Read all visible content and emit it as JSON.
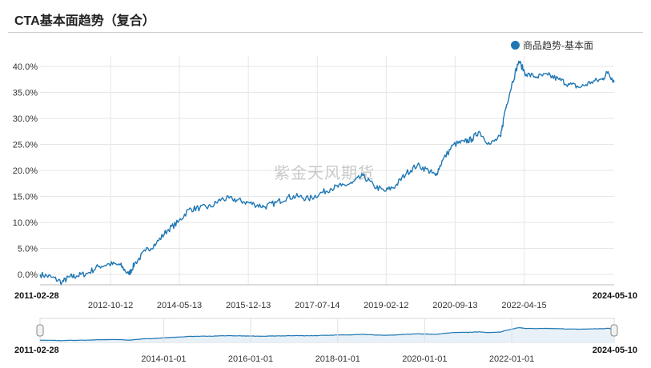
{
  "title": "CTA基本面趋势（复合）",
  "legend": {
    "label": "商品趋势-基本面",
    "color": "#1f77b4"
  },
  "watermark": "紫金天风期货",
  "chart_data": {
    "type": "line",
    "title": "CTA基本面趋势（复合）",
    "ylim": [
      -0.02,
      0.42
    ],
    "y_ticks": [
      "40.0%",
      "35.0%",
      "30.0%",
      "25.0%",
      "20.0%",
      "15.0%",
      "10.0%",
      "5.0%",
      "0.0%"
    ],
    "x_ticks_upper": [
      "2012-10-12",
      "2014-05-13",
      "2015-12-13",
      "2017-07-14",
      "2019-02-12",
      "2020-09-13",
      "2022-04-15"
    ],
    "x_range_labels": [
      "2011-02-28",
      "2024-05-10"
    ],
    "x_ticks_navigator": [
      "2014-01-01",
      "2016-01-01",
      "2018-01-01",
      "2020-01-01",
      "2022-01-01"
    ],
    "series": [
      {
        "name": "商品趋势-基本面",
        "points": [
          [
            "2011-02-28",
            0.0
          ],
          [
            "2011-06-01",
            -0.005
          ],
          [
            "2011-09-01",
            -0.015
          ],
          [
            "2011-11-01",
            -0.005
          ],
          [
            "2012-01-01",
            -0.003
          ],
          [
            "2012-04-01",
            0.002
          ],
          [
            "2012-07-01",
            0.015
          ],
          [
            "2012-10-01",
            0.02
          ],
          [
            "2013-01-01",
            0.018
          ],
          [
            "2013-03-15",
            0.0
          ],
          [
            "2013-05-01",
            0.02
          ],
          [
            "2013-08-01",
            0.045
          ],
          [
            "2013-11-01",
            0.06
          ],
          [
            "2014-02-01",
            0.085
          ],
          [
            "2014-05-01",
            0.1
          ],
          [
            "2014-08-01",
            0.125
          ],
          [
            "2014-11-01",
            0.128
          ],
          [
            "2015-02-01",
            0.13
          ],
          [
            "2015-05-01",
            0.145
          ],
          [
            "2015-08-01",
            0.145
          ],
          [
            "2015-11-01",
            0.14
          ],
          [
            "2016-02-01",
            0.135
          ],
          [
            "2016-05-01",
            0.13
          ],
          [
            "2016-08-01",
            0.138
          ],
          [
            "2016-11-01",
            0.148
          ],
          [
            "2017-02-01",
            0.15
          ],
          [
            "2017-05-01",
            0.145
          ],
          [
            "2017-08-01",
            0.155
          ],
          [
            "2017-11-01",
            0.165
          ],
          [
            "2018-02-01",
            0.17
          ],
          [
            "2018-05-01",
            0.175
          ],
          [
            "2018-08-01",
            0.19
          ],
          [
            "2018-11-01",
            0.17
          ],
          [
            "2019-02-01",
            0.16
          ],
          [
            "2019-05-01",
            0.17
          ],
          [
            "2019-08-01",
            0.195
          ],
          [
            "2019-11-01",
            0.21
          ],
          [
            "2020-02-01",
            0.2
          ],
          [
            "2020-04-01",
            0.19
          ],
          [
            "2020-06-01",
            0.22
          ],
          [
            "2020-09-01",
            0.25
          ],
          [
            "2020-12-01",
            0.255
          ],
          [
            "2021-02-01",
            0.26
          ],
          [
            "2021-04-01",
            0.275
          ],
          [
            "2021-07-01",
            0.25
          ],
          [
            "2021-10-01",
            0.265
          ],
          [
            "2021-11-01",
            0.31
          ],
          [
            "2022-01-01",
            0.365
          ],
          [
            "2022-03-01",
            0.41
          ],
          [
            "2022-05-01",
            0.385
          ],
          [
            "2022-08-01",
            0.38
          ],
          [
            "2022-11-01",
            0.383
          ],
          [
            "2023-02-01",
            0.375
          ],
          [
            "2023-05-01",
            0.365
          ],
          [
            "2023-08-01",
            0.36
          ],
          [
            "2023-11-01",
            0.37
          ],
          [
            "2024-02-01",
            0.375
          ],
          [
            "2024-03-20",
            0.39
          ],
          [
            "2024-05-10",
            0.37
          ]
        ]
      }
    ]
  }
}
